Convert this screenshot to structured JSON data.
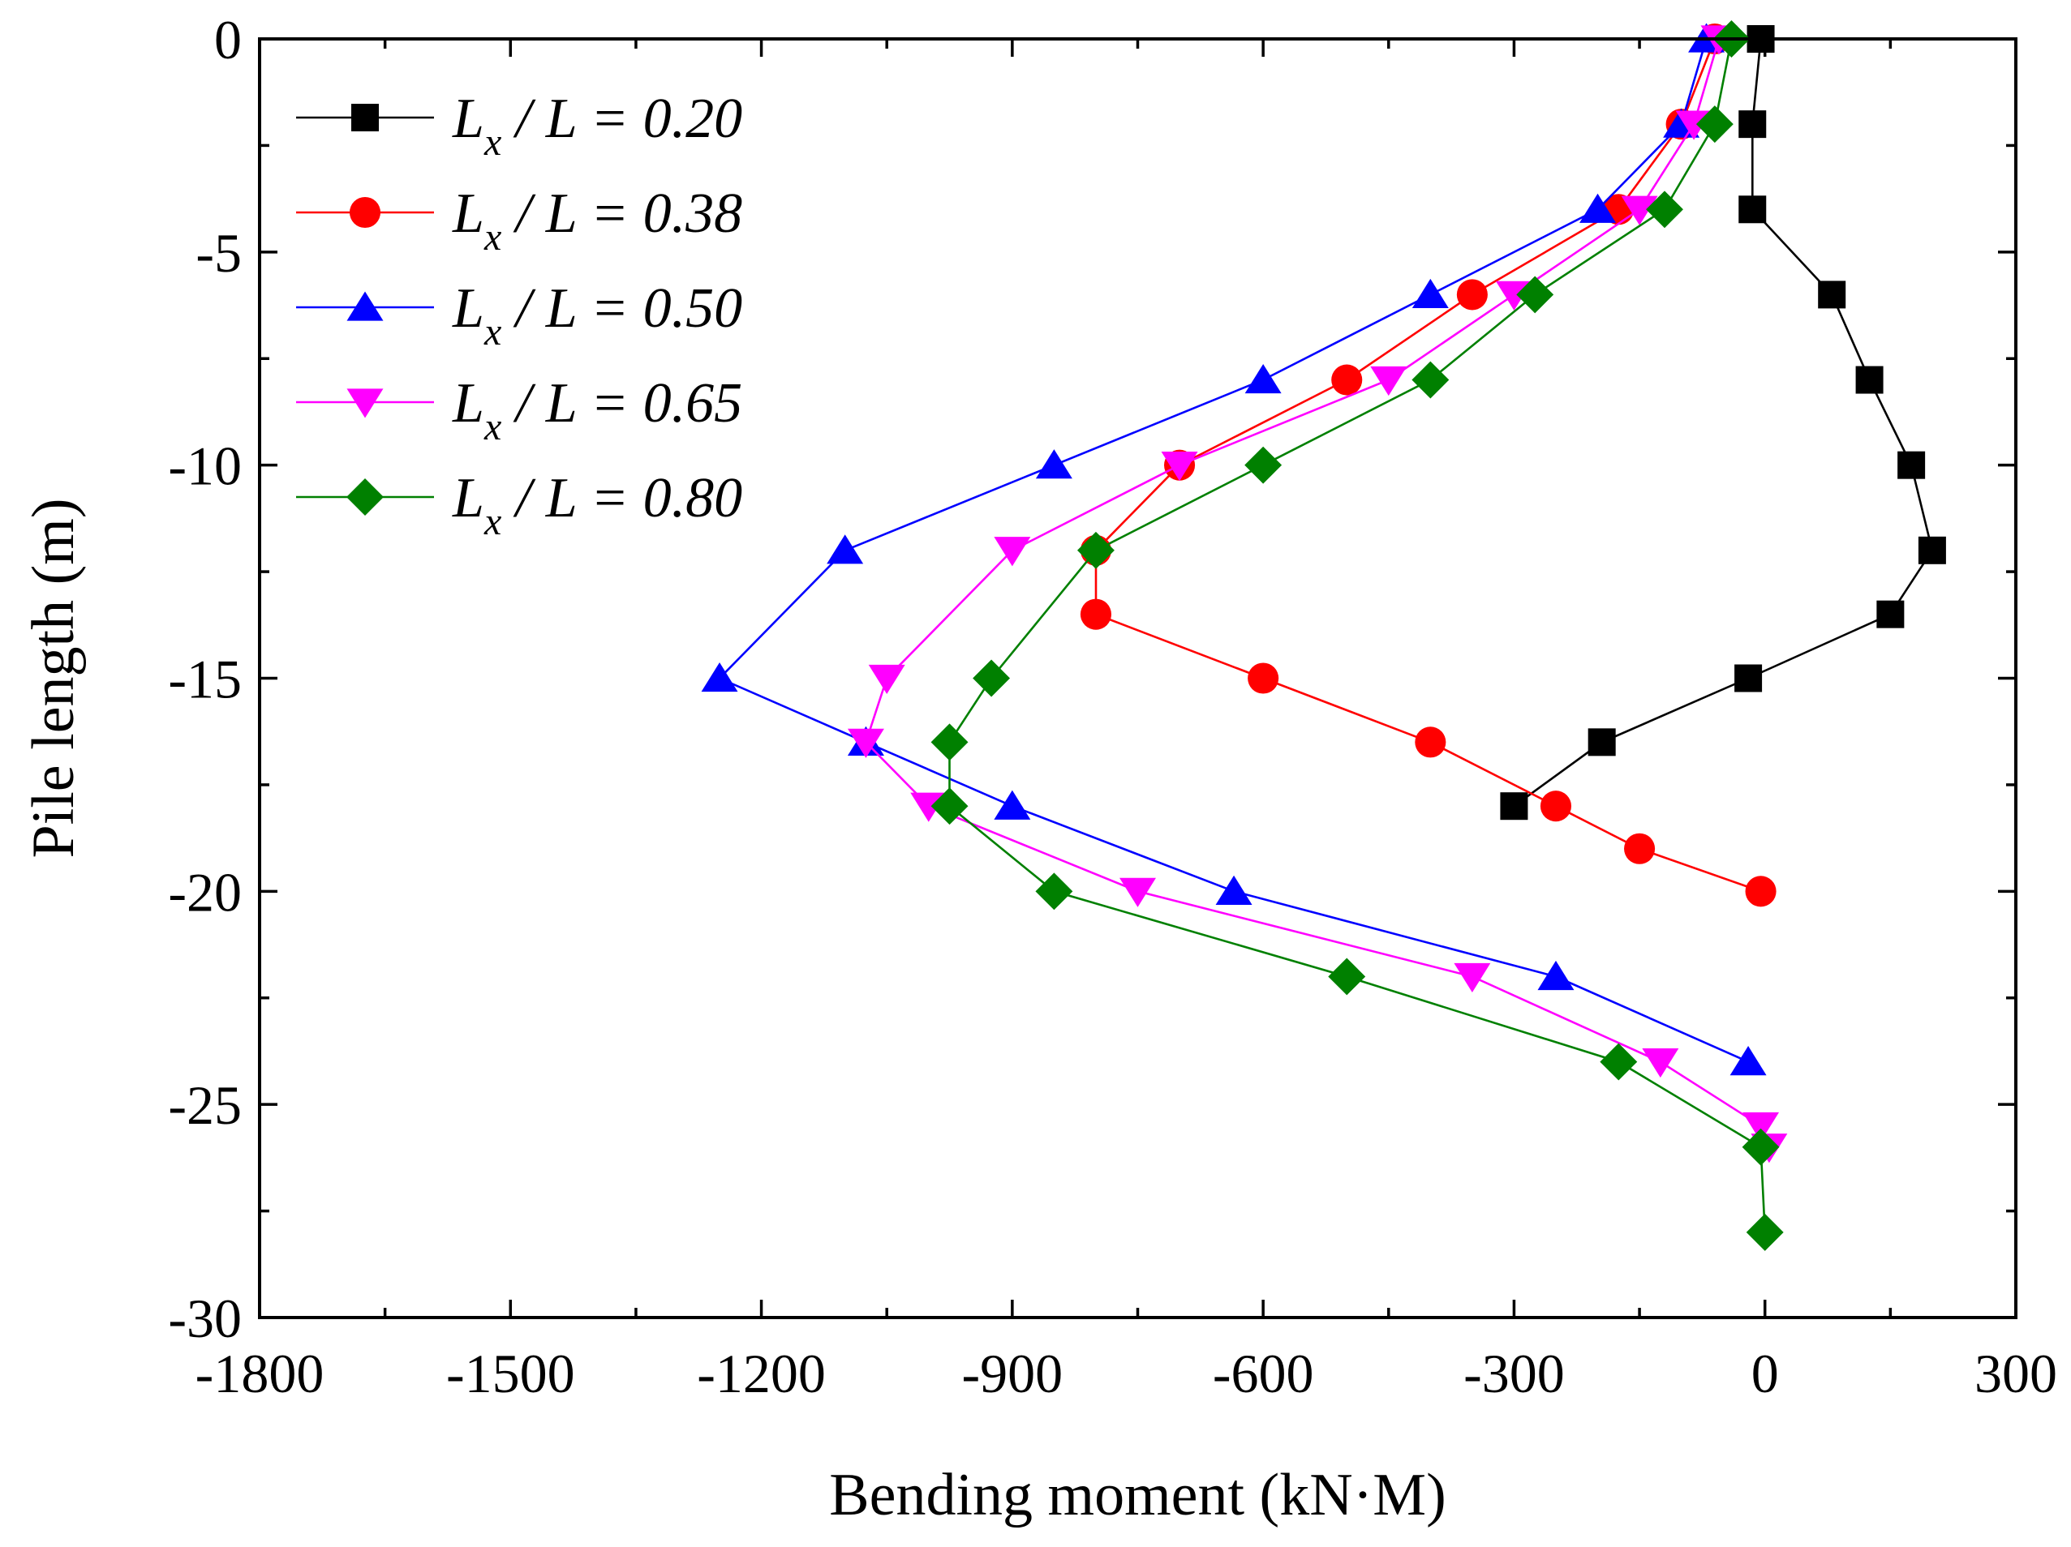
{
  "chart_data": {
    "type": "line",
    "title": "",
    "xlabel": "Bending moment (kN·M)",
    "ylabel": "Pile length (m)",
    "xlim": [
      -1800,
      300
    ],
    "ylim": [
      -30,
      0
    ],
    "x_ticks": [
      -1800,
      -1500,
      -1200,
      -900,
      -600,
      -300,
      0,
      300
    ],
    "y_ticks": [
      0,
      -5,
      -10,
      -15,
      -20,
      -25,
      -30
    ],
    "x_tick_labels": [
      "-1800",
      "-1500",
      "-1200",
      "-900",
      "-600",
      "-300",
      "0",
      "300"
    ],
    "y_tick_labels": [
      "0",
      "-5",
      "-10",
      "-15",
      "-20",
      "-25",
      "-30"
    ],
    "grid": false,
    "legend_position": "top-left",
    "series": [
      {
        "name": "Lx / L = 0.20",
        "legend_var": "L",
        "legend_sub": "x",
        "legend_rest": " / L = 0.20",
        "color": "#000000",
        "marker": "square",
        "points": [
          {
            "x": -5,
            "y": 0
          },
          {
            "x": -15,
            "y": -2
          },
          {
            "x": -15,
            "y": -4
          },
          {
            "x": 80,
            "y": -6
          },
          {
            "x": 125,
            "y": -8
          },
          {
            "x": 175,
            "y": -10
          },
          {
            "x": 200,
            "y": -12
          },
          {
            "x": 150,
            "y": -13.5
          },
          {
            "x": -20,
            "y": -15
          },
          {
            "x": -195,
            "y": -16.5
          },
          {
            "x": -300,
            "y": -18
          }
        ]
      },
      {
        "name": "Lx / L = 0.38",
        "legend_var": "L",
        "legend_sub": "x",
        "legend_rest": " / L = 0.38",
        "color": "#ff0000",
        "marker": "circle",
        "points": [
          {
            "x": -60,
            "y": 0
          },
          {
            "x": -100,
            "y": -2
          },
          {
            "x": -175,
            "y": -4
          },
          {
            "x": -350,
            "y": -6
          },
          {
            "x": -500,
            "y": -8
          },
          {
            "x": -700,
            "y": -10
          },
          {
            "x": -800,
            "y": -12
          },
          {
            "x": -800,
            "y": -13.5
          },
          {
            "x": -600,
            "y": -15
          },
          {
            "x": -400,
            "y": -16.5
          },
          {
            "x": -250,
            "y": -18
          },
          {
            "x": -150,
            "y": -19
          },
          {
            "x": -5,
            "y": -20
          }
        ]
      },
      {
        "name": "Lx / L = 0.50",
        "legend_var": "L",
        "legend_sub": "x",
        "legend_rest": " / L = 0.50",
        "color": "#0000ff",
        "marker": "triangle-up",
        "points": [
          {
            "x": -70,
            "y": 0
          },
          {
            "x": -100,
            "y": -2
          },
          {
            "x": -200,
            "y": -4
          },
          {
            "x": -400,
            "y": -6
          },
          {
            "x": -600,
            "y": -8
          },
          {
            "x": -850,
            "y": -10
          },
          {
            "x": -1100,
            "y": -12
          },
          {
            "x": -1250,
            "y": -15
          },
          {
            "x": -1075,
            "y": -16.5
          },
          {
            "x": -900,
            "y": -18
          },
          {
            "x": -635,
            "y": -20
          },
          {
            "x": -250,
            "y": -22
          },
          {
            "x": -20,
            "y": -24
          }
        ]
      },
      {
        "name": "Lx / L = 0.65",
        "legend_var": "L",
        "legend_sub": "x",
        "legend_rest": " / L = 0.65",
        "color": "#ff00ff",
        "marker": "triangle-down",
        "points": [
          {
            "x": -55,
            "y": 0
          },
          {
            "x": -85,
            "y": -2
          },
          {
            "x": -150,
            "y": -4
          },
          {
            "x": -300,
            "y": -6
          },
          {
            "x": -450,
            "y": -8
          },
          {
            "x": -700,
            "y": -10
          },
          {
            "x": -900,
            "y": -12
          },
          {
            "x": -1050,
            "y": -15
          },
          {
            "x": -1075,
            "y": -16.5
          },
          {
            "x": -1000,
            "y": -18
          },
          {
            "x": -750,
            "y": -20
          },
          {
            "x": -350,
            "y": -22
          },
          {
            "x": -125,
            "y": -24
          },
          {
            "x": -5,
            "y": -25.5
          },
          {
            "x": 5,
            "y": -26
          }
        ]
      },
      {
        "name": "Lx / L = 0.80",
        "legend_var": "L",
        "legend_sub": "x",
        "legend_rest": " / L = 0.80",
        "color": "#008000",
        "marker": "diamond",
        "points": [
          {
            "x": -40,
            "y": 0
          },
          {
            "x": -60,
            "y": -2
          },
          {
            "x": -120,
            "y": -4
          },
          {
            "x": -275,
            "y": -6
          },
          {
            "x": -400,
            "y": -8
          },
          {
            "x": -600,
            "y": -10
          },
          {
            "x": -800,
            "y": -12
          },
          {
            "x": -925,
            "y": -15
          },
          {
            "x": -975,
            "y": -16.5
          },
          {
            "x": -975,
            "y": -18
          },
          {
            "x": -850,
            "y": -20
          },
          {
            "x": -500,
            "y": -22
          },
          {
            "x": -175,
            "y": -24
          },
          {
            "x": -5,
            "y": -26
          },
          {
            "x": 0,
            "y": -28
          }
        ]
      }
    ]
  }
}
